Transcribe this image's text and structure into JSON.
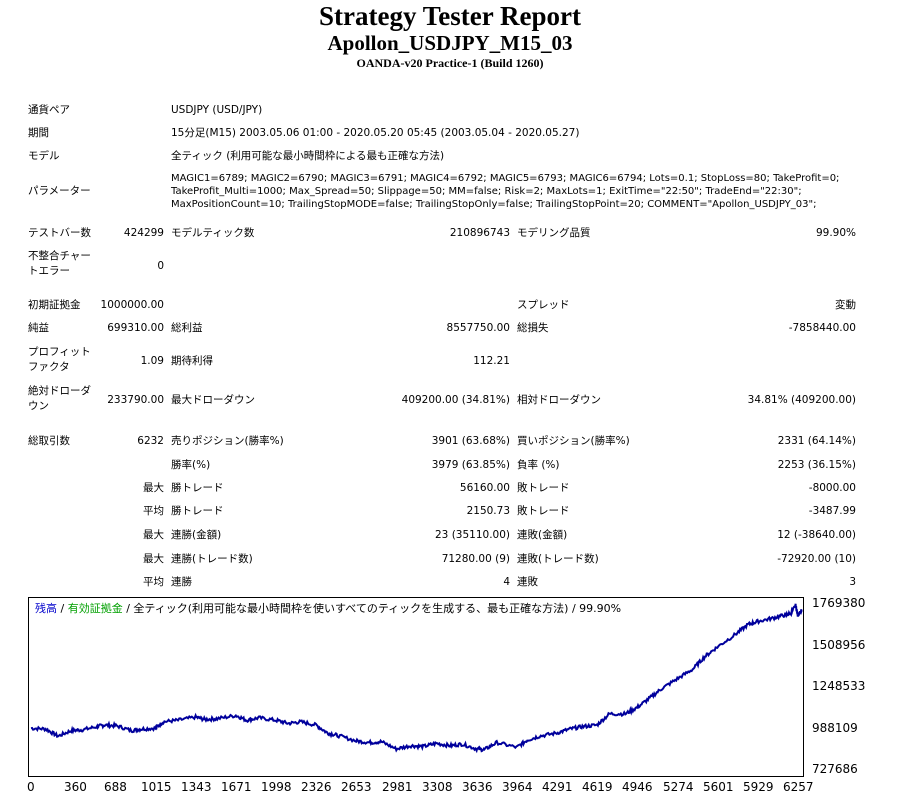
{
  "header": {
    "title": "Strategy Tester Report",
    "subtitle": "Apollon_USDJPY_M15_03",
    "build": "OANDA-v20 Practice-1 (Build 1260)"
  },
  "report": {
    "pair_label": "通貨ペア",
    "pair_value": "USDJPY (USD/JPY)",
    "period_label": "期間",
    "period_value": "15分足(M15) 2003.05.06 01:00 - 2020.05.20 05:45 (2003.05.04 - 2020.05.27)",
    "model_label": "モデル",
    "model_value": "全ティック (利用可能な最小時間枠による最も正確な方法)",
    "params_label": "パラメーター",
    "params_value": "MAGIC1=6789; MAGIC2=6790; MAGIC3=6791; MAGIC4=6792; MAGIC5=6793; MAGIC6=6794; Lots=0.1; StopLoss=80; TakeProfit=0; TakeProfit_Multi=1000; Max_Spread=50; Slippage=50; MM=false; Risk=2; MaxLots=1; ExitTime=\"22:50\"; TradeEnd=\"22:30\"; MaxPositionCount=10; TrailingStopMODE=false; TrailingStopOnly=false; TrailingStopPoint=20; COMMENT=\"Apollon_USDJPY_03\";",
    "bars_label": "テストバー数",
    "bars_value": "424299",
    "ticks_label": "モデルティック数",
    "ticks_value": "210896743",
    "quality_label": "モデリング品質",
    "quality_value": "99.90%",
    "mismatch_label_1": "不整合チャー",
    "mismatch_label_2": "トエラー",
    "mismatch_value": "0",
    "deposit_label": "初期証拠金",
    "deposit_value": "1000000.00",
    "spread_label": "スプレッド",
    "spread_value": "変動",
    "net_label": "純益",
    "net_value": "699310.00",
    "gross_profit_label": "総利益",
    "gross_profit_value": "8557750.00",
    "gross_loss_label": "総損失",
    "gross_loss_value": "-7858440.00",
    "pf_label_1": "プロフィット",
    "pf_label_2": "ファクタ",
    "pf_value": "1.09",
    "expected_label": "期待利得",
    "expected_value": "112.21",
    "abs_dd_label_1": "絶対ドローダ",
    "abs_dd_label_2": "ウン",
    "abs_dd_value": "233790.00",
    "max_dd_label": "最大ドローダウン",
    "max_dd_value": "409200.00 (34.81%)",
    "rel_dd_label": "相対ドローダウン",
    "rel_dd_value": "34.81% (409200.00)",
    "trades_label": "総取引数",
    "trades_value": "6232",
    "short_label": "売りポジション(勝率%)",
    "short_value": "3901 (63.68%)",
    "long_label": "買いポジション(勝率%)",
    "long_value": "2331 (64.14%)",
    "winrate_label": "勝率(%)",
    "winrate_value": "3979 (63.85%)",
    "lossrate_label": "負率 (%)",
    "lossrate_value": "2253 (36.15%)",
    "max_prefix": "最大",
    "avg_prefix": "平均",
    "max_win_label": "勝トレード",
    "max_win_value": "56160.00",
    "max_loss_label": "敗トレード",
    "max_loss_value": "-8000.00",
    "avg_win_label": "勝トレード",
    "avg_win_value": "2150.73",
    "avg_loss_label": "敗トレード",
    "avg_loss_value": "-3487.99",
    "max_consec_win_amt_label": "連勝(金額)",
    "max_consec_win_amt_value": "23 (35110.00)",
    "max_consec_loss_amt_label": "連敗(金額)",
    "max_consec_loss_amt_value": "12 (-38640.00)",
    "max_consec_win_cnt_label": "連勝(トレード数)",
    "max_consec_win_cnt_value": "71280.00 (9)",
    "max_consec_loss_cnt_label": "連敗(トレード数)",
    "max_consec_loss_cnt_value": "-72920.00 (10)",
    "avg_consec_win_label": "連勝",
    "avg_consec_win_value": "4",
    "avg_consec_loss_label": "連敗",
    "avg_consec_loss_value": "3"
  },
  "chart_legend": {
    "balance": "残高",
    "sep1": " / ",
    "equity": "有効証拠金",
    "sep2": " / ",
    "rest": "全ティック(利用可能な最小時間枠を使いすべてのティックを生成する、最も正確な方法) / 99.90%"
  },
  "colors": {
    "balance": "#0000cc",
    "equity": "#00a000",
    "line": "#00009c"
  },
  "chart_data": {
    "type": "line",
    "title": "",
    "xlabel": "",
    "ylabel": "",
    "x_ticks": [
      "0",
      "360",
      "688",
      "1015",
      "1343",
      "1671",
      "1998",
      "2326",
      "2653",
      "2981",
      "3308",
      "3636",
      "3964",
      "4291",
      "4619",
      "4946",
      "5274",
      "5601",
      "5929",
      "6257"
    ],
    "y_ticks": [
      "1769380",
      "1508956",
      "1248533",
      "988109",
      "727686"
    ],
    "xlim": [
      0,
      6300
    ],
    "ylim": [
      727686,
      1769380
    ],
    "series": [
      {
        "x": [
          0,
          120,
          220,
          330,
          420,
          540,
          600,
          700,
          820,
          900,
          1015,
          1080,
          1200,
          1343,
          1420,
          1520,
          1671,
          1760,
          1860,
          1998,
          2100,
          2200,
          2326,
          2420,
          2500,
          2653,
          2760,
          2860,
          2981,
          3100,
          3200,
          3308,
          3420,
          3520,
          3636,
          3700,
          3800,
          3964,
          4050,
          4150,
          4291,
          4400,
          4500,
          4619,
          4720,
          4850,
          4946,
          5050,
          5150,
          5274,
          5400,
          5500,
          5601,
          5750,
          5850,
          5929,
          6050,
          6150,
          6200,
          6240,
          6257,
          6290
        ],
        "values": [
          990000,
          985000,
          940000,
          975000,
          980000,
          1000000,
          1010000,
          1005000,
          975000,
          985000,
          990000,
          1030000,
          1040000,
          1060000,
          1045000,
          1050000,
          1070000,
          1040000,
          1055000,
          1040000,
          1020000,
          1030000,
          1010000,
          960000,
          945000,
          910000,
          900000,
          905000,
          860000,
          880000,
          875000,
          895000,
          880000,
          890000,
          860000,
          855000,
          900000,
          870000,
          915000,
          940000,
          960000,
          985000,
          1000000,
          1010000,
          1080000,
          1080000,
          1120000,
          1180000,
          1240000,
          1300000,
          1360000,
          1440000,
          1500000,
          1580000,
          1640000,
          1660000,
          1680000,
          1700000,
          1710000,
          1760000,
          1700000,
          1730000
        ]
      }
    ]
  }
}
